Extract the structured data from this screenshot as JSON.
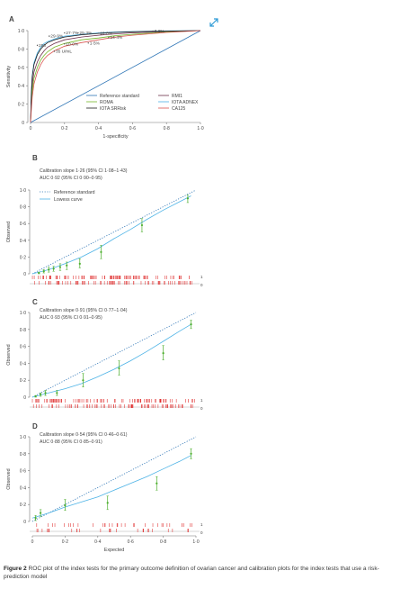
{
  "caption": {
    "label": "Figure 2",
    "text": "ROC plot of the index tests for the primary outcome definition of ovarian cancer and calibration plots for the index tests that use a risk-prediction model"
  },
  "expand_icon": "expand-icon",
  "chart_data": [
    {
      "panel": "A",
      "type": "line",
      "xlabel": "1-specificity",
      "ylabel": "Sensitivity",
      "xlim": [
        0,
        1
      ],
      "ylim": [
        0,
        1
      ],
      "x_ticks": [
        "0",
        "0·2",
        "0·4",
        "0·6",
        "0·8",
        "1·0"
      ],
      "y_ticks": [
        "0",
        "0·2",
        "0·4",
        "0·6",
        "0·8",
        "1·0"
      ],
      "legend_position": "bottom-right",
      "series": [
        {
          "name": "Reference standard",
          "color": "#2e75b6",
          "x": [
            0,
            1
          ],
          "y": [
            0,
            1
          ]
        },
        {
          "name": "RMI1",
          "color": "#6d2f4a",
          "x": [
            0,
            0.005,
            0.01,
            0.02,
            0.04,
            0.06,
            0.08,
            0.1,
            0.14,
            0.2,
            0.3,
            0.4,
            0.5,
            0.6,
            0.8,
            1
          ],
          "y": [
            0,
            0.25,
            0.42,
            0.55,
            0.66,
            0.73,
            0.78,
            0.82,
            0.86,
            0.9,
            0.93,
            0.95,
            0.965,
            0.975,
            0.99,
            1
          ]
        },
        {
          "name": "ROMA",
          "color": "#76b82a",
          "x": [
            0,
            0.005,
            0.01,
            0.02,
            0.04,
            0.06,
            0.08,
            0.1,
            0.14,
            0.2,
            0.3,
            0.4,
            0.5,
            0.6,
            0.8,
            1
          ],
          "y": [
            0,
            0.2,
            0.35,
            0.48,
            0.6,
            0.68,
            0.73,
            0.77,
            0.82,
            0.86,
            0.9,
            0.92,
            0.945,
            0.96,
            0.985,
            1
          ]
        },
        {
          "name": "IOTA ADNEX",
          "color": "#4db3e6",
          "x": [
            0,
            0.005,
            0.01,
            0.02,
            0.04,
            0.06,
            0.08,
            0.1,
            0.14,
            0.2,
            0.3,
            0.4,
            0.5,
            0.6,
            0.8,
            1
          ],
          "y": [
            0,
            0.35,
            0.52,
            0.65,
            0.76,
            0.82,
            0.86,
            0.88,
            0.91,
            0.94,
            0.96,
            0.975,
            0.985,
            0.99,
            0.997,
            1
          ]
        },
        {
          "name": "IOTA SRRisk",
          "color": "#1a1a1a",
          "x": [
            0,
            0.005,
            0.01,
            0.02,
            0.04,
            0.06,
            0.08,
            0.1,
            0.14,
            0.2,
            0.3,
            0.4,
            0.5,
            0.6,
            0.8,
            1
          ],
          "y": [
            0,
            0.32,
            0.5,
            0.63,
            0.74,
            0.8,
            0.84,
            0.87,
            0.9,
            0.93,
            0.955,
            0.97,
            0.98,
            0.987,
            0.995,
            1
          ]
        },
        {
          "name": "CA125",
          "color": "#d9534f",
          "x": [
            0,
            0.005,
            0.01,
            0.02,
            0.04,
            0.06,
            0.08,
            0.1,
            0.14,
            0.2,
            0.3,
            0.4,
            0.5,
            0.6,
            0.8,
            1
          ],
          "y": [
            0,
            0.15,
            0.28,
            0.42,
            0.55,
            0.63,
            0.69,
            0.73,
            0.78,
            0.83,
            0.87,
            0.9,
            0.93,
            0.95,
            0.98,
            1
          ]
        }
      ],
      "annotations": [
        {
          "text": "3·0%",
          "x": 0.72,
          "y": 0.995
        },
        {
          "text": "27·7%",
          "x": 0.2,
          "y": 0.975
        },
        {
          "text": "25·3%",
          "x": 0.28,
          "y": 0.975
        },
        {
          "text": "10·0%",
          "x": 0.4,
          "y": 0.97
        },
        {
          "text": "29·9%",
          "x": 0.11,
          "y": 0.94
        },
        {
          "text": "14·4%",
          "x": 0.46,
          "y": 0.925
        },
        {
          "text": "250",
          "x": 0.04,
          "y": 0.84
        },
        {
          "text": "10·0%",
          "x": 0.2,
          "y": 0.855
        },
        {
          "text": "1·5%",
          "x": 0.34,
          "y": 0.865
        },
        {
          "text": "35 U/mL",
          "x": 0.14,
          "y": 0.775
        }
      ]
    },
    {
      "panel": "B",
      "type": "line",
      "text_lines": [
        "Calibration slope 1·26 (95% CI 1·08–1·43)",
        "AUC 0·92 (95% CI 0·90–0·95)"
      ],
      "ylabel": "Observed",
      "xlim": [
        0,
        1
      ],
      "ylim": [
        0,
        1
      ],
      "y_ticks": [
        "0",
        "0·2",
        "0·4",
        "0·6",
        "0·8",
        "1·0"
      ],
      "rug_labels": [
        "1",
        "0"
      ],
      "legend_position": "top-left",
      "series": [
        {
          "name": "Reference standard",
          "style": "dotted",
          "color": "#2e75b6",
          "x": [
            0,
            1
          ],
          "y": [
            0,
            1
          ]
        },
        {
          "name": "Lowess curve",
          "color": "#4db3e6",
          "x": [
            0,
            0.1,
            0.2,
            0.3,
            0.4,
            0.5,
            0.6,
            0.7,
            0.8,
            0.9,
            0.97
          ],
          "y": [
            0,
            0.05,
            0.12,
            0.2,
            0.3,
            0.42,
            0.53,
            0.65,
            0.76,
            0.86,
            0.93
          ]
        }
      ],
      "points": [
        {
          "x": 0.04,
          "y": 0.01,
          "lo": 0.0,
          "hi": 0.02
        },
        {
          "x": 0.07,
          "y": 0.03,
          "lo": 0.01,
          "hi": 0.05
        },
        {
          "x": 0.1,
          "y": 0.05,
          "lo": 0.02,
          "hi": 0.08
        },
        {
          "x": 0.13,
          "y": 0.06,
          "lo": 0.03,
          "hi": 0.09
        },
        {
          "x": 0.17,
          "y": 0.08,
          "lo": 0.04,
          "hi": 0.12
        },
        {
          "x": 0.21,
          "y": 0.1,
          "lo": 0.05,
          "hi": 0.14
        },
        {
          "x": 0.29,
          "y": 0.12,
          "lo": 0.07,
          "hi": 0.18
        },
        {
          "x": 0.42,
          "y": 0.26,
          "lo": 0.18,
          "hi": 0.34
        },
        {
          "x": 0.67,
          "y": 0.58,
          "lo": 0.5,
          "hi": 0.66
        },
        {
          "x": 0.95,
          "y": 0.9,
          "lo": 0.85,
          "hi": 0.94
        }
      ]
    },
    {
      "panel": "C",
      "type": "line",
      "text_lines": [
        "Calibration slope 0·91 (95% CI 0·77–1·04)",
        "AUC 0·93 (95% CI 0·91–0·95)"
      ],
      "ylabel": "Observed",
      "xlim": [
        0,
        1
      ],
      "ylim": [
        0,
        1
      ],
      "y_ticks": [
        "0",
        "0·2",
        "0·4",
        "0·6",
        "0·8",
        "1·0"
      ],
      "rug_labels": [
        "1",
        "0"
      ],
      "series": [
        {
          "name": "Reference standard",
          "style": "dotted",
          "color": "#2e75b6",
          "x": [
            0,
            1
          ],
          "y": [
            0,
            1
          ]
        },
        {
          "name": "Lowess curve",
          "color": "#4db3e6",
          "x": [
            0,
            0.1,
            0.2,
            0.3,
            0.4,
            0.5,
            0.6,
            0.7,
            0.8,
            0.9,
            0.97
          ],
          "y": [
            0,
            0.05,
            0.1,
            0.16,
            0.24,
            0.33,
            0.43,
            0.54,
            0.66,
            0.78,
            0.86
          ]
        }
      ],
      "points": [
        {
          "x": 0.02,
          "y": 0.01,
          "lo": 0.0,
          "hi": 0.02
        },
        {
          "x": 0.05,
          "y": 0.03,
          "lo": 0.01,
          "hi": 0.05
        },
        {
          "x": 0.08,
          "y": 0.05,
          "lo": 0.02,
          "hi": 0.08
        },
        {
          "x": 0.15,
          "y": 0.05,
          "lo": 0.02,
          "hi": 0.08
        },
        {
          "x": 0.31,
          "y": 0.2,
          "lo": 0.12,
          "hi": 0.28
        },
        {
          "x": 0.53,
          "y": 0.34,
          "lo": 0.26,
          "hi": 0.43
        },
        {
          "x": 0.8,
          "y": 0.52,
          "lo": 0.44,
          "hi": 0.61
        },
        {
          "x": 0.97,
          "y": 0.86,
          "lo": 0.81,
          "hi": 0.91
        }
      ]
    },
    {
      "panel": "D",
      "type": "line",
      "text_lines": [
        "Calibration slope 0·54 (95% CI 0·46–0·61)",
        "AUC 0·88 (95% CI 0·85–0·91)"
      ],
      "xlabel": "Expected",
      "ylabel": "Observed",
      "xlim": [
        0,
        1
      ],
      "ylim": [
        0,
        1
      ],
      "x_ticks": [
        "0",
        "0·2",
        "0·4",
        "0·6",
        "0·8",
        "1·0"
      ],
      "y_ticks": [
        "0",
        "0·2",
        "0·4",
        "0·6",
        "0·8",
        "1·0"
      ],
      "rug_labels": [
        "1",
        "0"
      ],
      "series": [
        {
          "name": "Reference standard",
          "style": "dotted",
          "color": "#2e75b6",
          "x": [
            0,
            1
          ],
          "y": [
            0,
            1
          ]
        },
        {
          "name": "Lowess curve",
          "color": "#4db3e6",
          "x": [
            0,
            0.1,
            0.2,
            0.3,
            0.4,
            0.5,
            0.6,
            0.7,
            0.8,
            0.9,
            0.97
          ],
          "y": [
            0.04,
            0.1,
            0.17,
            0.23,
            0.29,
            0.37,
            0.45,
            0.53,
            0.62,
            0.71,
            0.78
          ]
        }
      ],
      "points": [
        {
          "x": 0.02,
          "y": 0.04,
          "lo": 0.01,
          "hi": 0.07
        },
        {
          "x": 0.05,
          "y": 0.1,
          "lo": 0.06,
          "hi": 0.14
        },
        {
          "x": 0.2,
          "y": 0.19,
          "lo": 0.13,
          "hi": 0.26
        },
        {
          "x": 0.46,
          "y": 0.22,
          "lo": 0.14,
          "hi": 0.3
        },
        {
          "x": 0.76,
          "y": 0.45,
          "lo": 0.37,
          "hi": 0.53
        },
        {
          "x": 0.97,
          "y": 0.8,
          "lo": 0.74,
          "hi": 0.86
        }
      ]
    }
  ]
}
